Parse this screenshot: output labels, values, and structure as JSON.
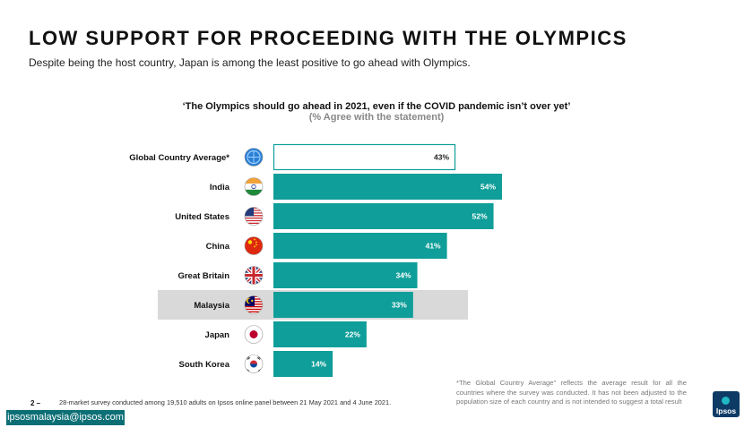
{
  "header": {
    "title": "LOW SUPPORT FOR PROCEEDING WITH THE OLYMPICS",
    "subtitle": "Despite being the host country, Japan is among the least positive to go ahead with Olympics."
  },
  "chart_data": {
    "type": "bar",
    "orientation": "horizontal",
    "title": "‘The Olympics should go ahead in 2021, even if the COVID pandemic isn’t over yet’",
    "subtitle": "(% Agree with the statement)",
    "unit": "%",
    "categories": [
      "Global Country Average*",
      "India",
      "United States",
      "China",
      "Great Britain",
      "Malaysia",
      "Japan",
      "South Korea"
    ],
    "values": [
      43,
      54,
      52,
      41,
      34,
      33,
      22,
      14
    ],
    "data_labels": [
      "43%",
      "54%",
      "52%",
      "41%",
      "34%",
      "33%",
      "22%",
      "14%"
    ],
    "highlight": "Malaysia",
    "outlined": "Global Country Average*",
    "flags": [
      "globe-icon",
      "india-flag-icon",
      "usa-flag-icon",
      "china-flag-icon",
      "uk-flag-icon",
      "malaysia-flag-icon",
      "japan-flag-icon",
      "south-korea-flag-icon"
    ],
    "xlim": [
      0,
      54
    ]
  },
  "colors": {
    "bar": "#0f9e99",
    "bar_outline": "#0f9e99",
    "highlight_row": "#d9d9d9",
    "brand": "#0d6f76"
  },
  "footer": {
    "footnote": "*The Global Country Average\" reflects the average result for all the countries where the survey was conducted. It has not been adjusted to the population size of each country and is not intended to suggest a total result",
    "page_number": "2 –",
    "source": "28-market survey conducted among 19,510 adults on Ipsos online panel between 21 May 2021 and 4 June 2021.",
    "email": "ipsosmalaysia@ipsos.com",
    "logo_text": "Ipsos"
  }
}
